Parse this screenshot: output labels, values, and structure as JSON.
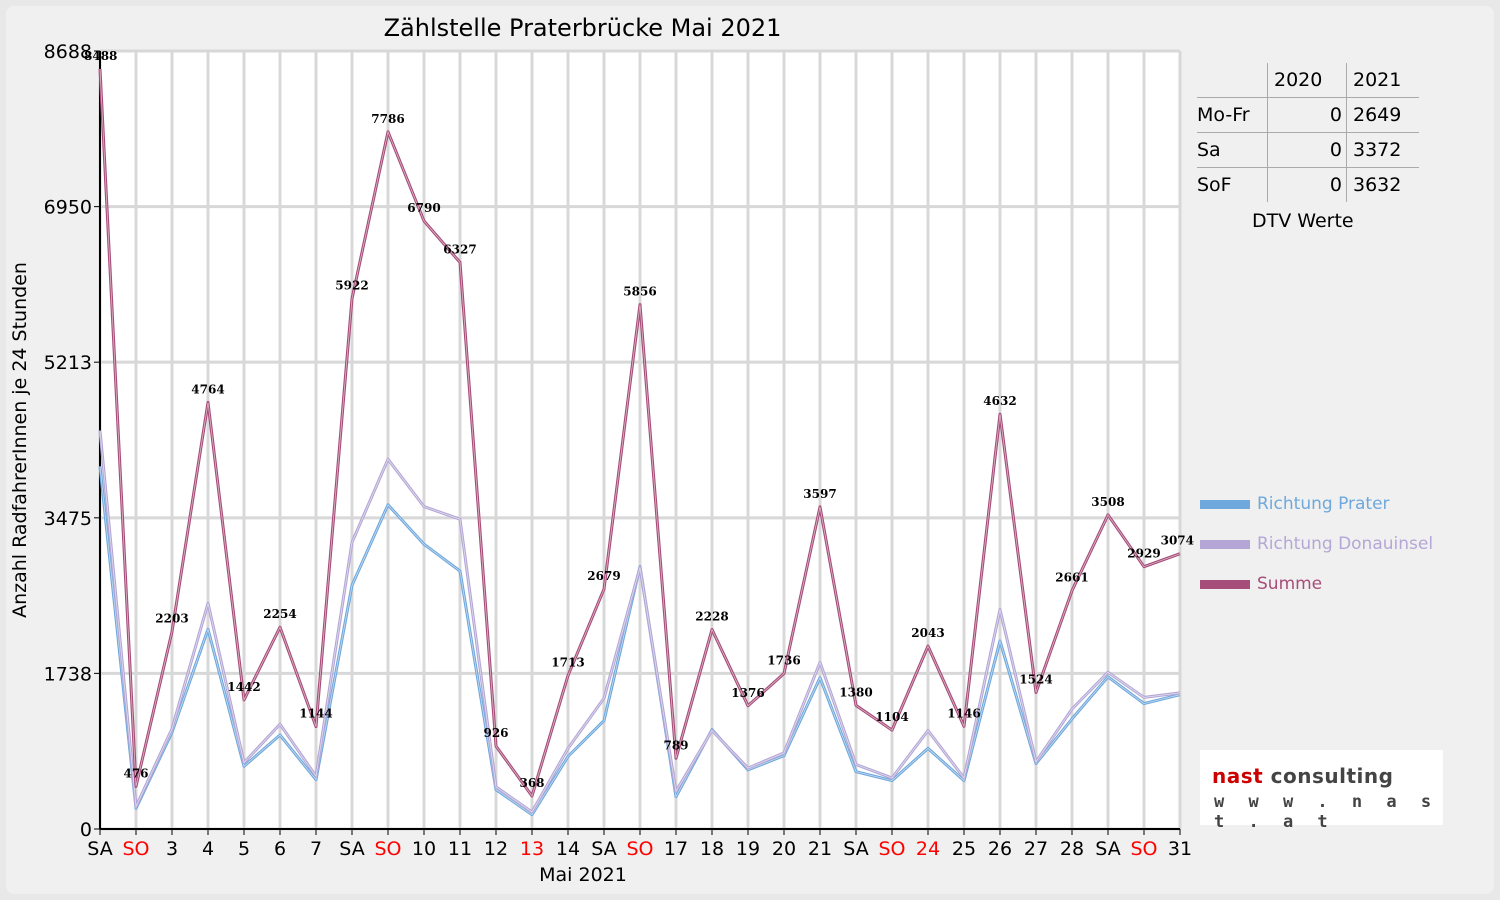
{
  "chart_data": {
    "type": "line",
    "title": "Zählstelle Praterbrücke Mai 2021",
    "xlabel": "Mai 2021",
    "ylabel": "Anzahl RadfahrerInnen je 24 Stunden",
    "ylim": [
      0,
      8688
    ],
    "yticks": [
      0,
      1738,
      3475,
      5213,
      6950,
      8688
    ],
    "categories": [
      "SA",
      "SO",
      "3",
      "4",
      "5",
      "6",
      "7",
      "SA",
      "SO",
      "10",
      "11",
      "12",
      "13",
      "14",
      "SA",
      "SO",
      "17",
      "18",
      "19",
      "20",
      "21",
      "SA",
      "SO",
      "24",
      "25",
      "26",
      "27",
      "28",
      "SA",
      "SO",
      "31"
    ],
    "red_categories": [
      1,
      8,
      12,
      15,
      22,
      23,
      29
    ],
    "series": [
      {
        "name": "Richtung Prater",
        "color": "#6fa8dc",
        "values": [
          4050,
          230,
          1080,
          2230,
          700,
          1050,
          550,
          2720,
          3620,
          3180,
          2880,
          440,
          160,
          810,
          1210,
          2930,
          360,
          1110,
          660,
          820,
          1690,
          640,
          540,
          900,
          540,
          2100,
          730,
          1230,
          1700,
          1400,
          1500
        ]
      },
      {
        "name": "Richtung Donauinsel",
        "color": "#b4a7d6",
        "values": [
          4450,
          250,
          1120,
          2520,
          740,
          1170,
          590,
          3200,
          4130,
          3600,
          3460,
          470,
          190,
          900,
          1460,
          2920,
          420,
          1100,
          680,
          850,
          1860,
          720,
          570,
          1100,
          570,
          2450,
          750,
          1340,
          1750,
          1470,
          1520
        ]
      },
      {
        "name": "Summe",
        "color": "#a64d79",
        "values": [
          8488,
          476,
          2203,
          4764,
          1442,
          2254,
          1144,
          5922,
          7786,
          6790,
          6327,
          926,
          368,
          1713,
          2679,
          5856,
          789,
          2228,
          1376,
          1736,
          3597,
          1380,
          1104,
          2043,
          1146,
          4632,
          1524,
          2661,
          3508,
          2929,
          3074
        ]
      }
    ],
    "data_labels": [
      "8488",
      "476",
      "2203",
      "4764",
      "1442",
      "2254",
      "1144",
      "5922",
      "7786",
      "6790",
      "6327",
      "926",
      "368",
      "1713",
      "2679",
      "5856",
      "789",
      "2228",
      "1376",
      "1736",
      "3597",
      "1380",
      "1104",
      "2043",
      "1146",
      "4632",
      "1524",
      "2661",
      "3508",
      "2929",
      "3074"
    ],
    "grid": true,
    "legend": "right"
  },
  "dtv": {
    "headers": [
      "",
      "2020",
      "2021"
    ],
    "rows": [
      {
        "label": "Mo-Fr",
        "v2020": "0",
        "v2021": "2649"
      },
      {
        "label": "Sa",
        "v2020": "0",
        "v2021": "3372"
      },
      {
        "label": "SoF",
        "v2020": "0",
        "v2021": "3632"
      }
    ],
    "caption": "DTV Werte"
  },
  "logo": {
    "brand": "nast consulting",
    "url": "w w w . n a s t . a t",
    "brand_color": "#cc0000"
  },
  "colors": {
    "red_label": "#ff0000",
    "grid": "#d8d8d8"
  }
}
